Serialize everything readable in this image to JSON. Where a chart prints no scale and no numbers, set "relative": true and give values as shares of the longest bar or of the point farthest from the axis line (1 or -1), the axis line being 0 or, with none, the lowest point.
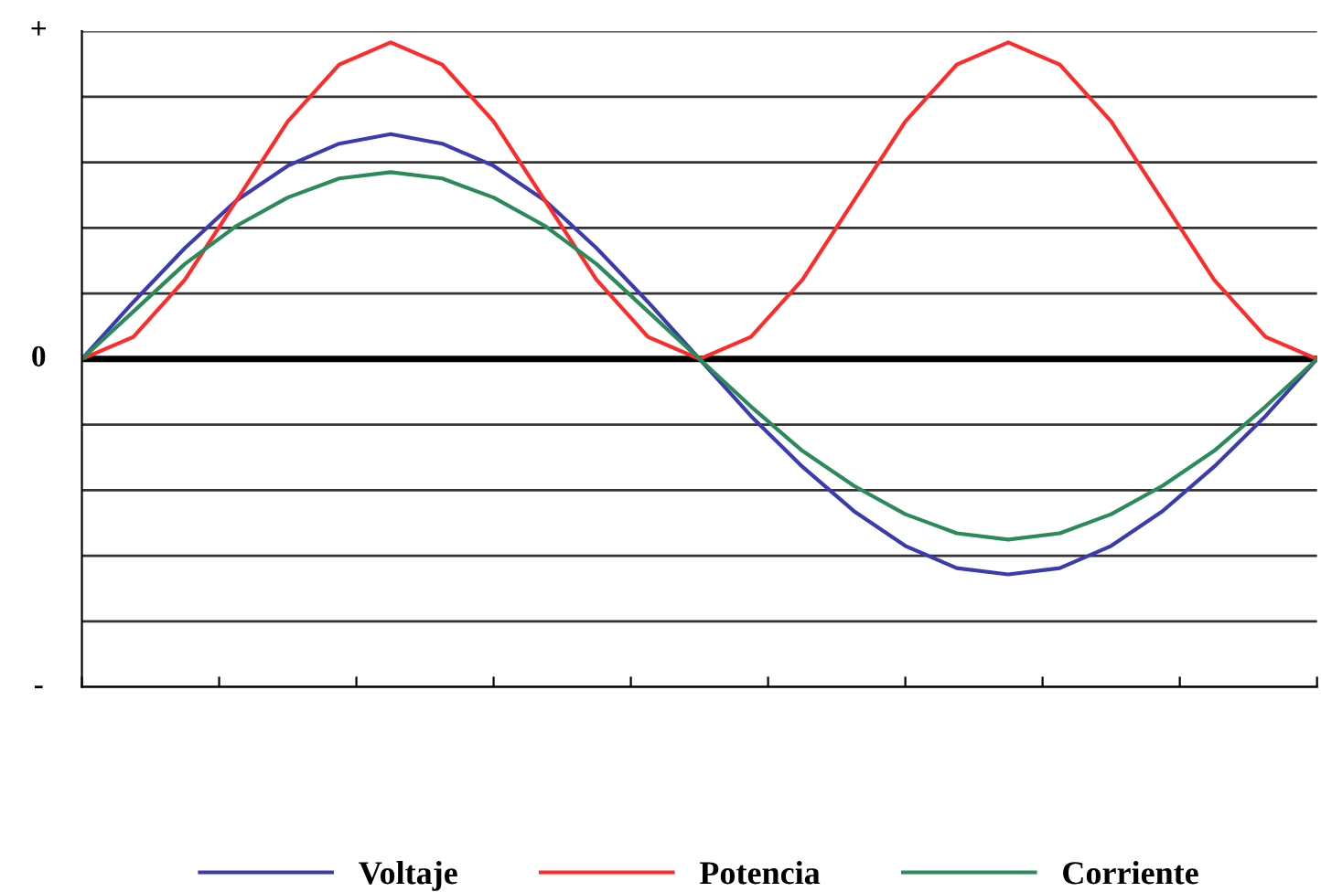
{
  "chart_data": {
    "type": "line",
    "relative": true,
    "grid": "y",
    "legend": "bottom",
    "marker": "none",
    "line_style": "solid",
    "annotations": [
      "+",
      "0",
      "-"
    ],
    "categories": [
      null,
      null,
      null,
      null,
      null,
      null,
      null,
      null,
      null,
      null,
      null,
      null,
      null,
      null,
      null,
      null,
      null,
      null,
      null,
      null,
      null,
      null,
      null,
      null,
      null
    ],
    "series": [
      {
        "name": "Voltaje",
        "color": "#3b3bb0",
        "values": [
          0,
          0.18,
          0.35,
          0.5,
          0.61,
          0.68,
          0.71,
          0.68,
          0.61,
          0.5,
          0.35,
          0.18,
          0,
          -0.18,
          -0.34,
          -0.48,
          -0.59,
          -0.66,
          -0.68,
          -0.66,
          -0.59,
          -0.48,
          -0.34,
          -0.18,
          0
        ]
      },
      {
        "name": "Potencia",
        "color": "#ff2a2a",
        "values": [
          0,
          0.07,
          0.25,
          0.5,
          0.75,
          0.93,
          1,
          0.93,
          0.75,
          0.5,
          0.25,
          0.07,
          0,
          0.07,
          0.25,
          0.5,
          0.75,
          0.93,
          1,
          0.93,
          0.75,
          0.5,
          0.25,
          0.07,
          0
        ]
      },
      {
        "name": "Corriente",
        "color": "#2a8a5a",
        "values": [
          0,
          0.15,
          0.3,
          0.42,
          0.51,
          0.57,
          0.59,
          0.57,
          0.51,
          0.42,
          0.3,
          0.15,
          0,
          -0.15,
          -0.29,
          -0.4,
          -0.49,
          -0.55,
          -0.57,
          -0.55,
          -0.49,
          -0.4,
          -0.29,
          -0.15,
          0
        ]
      }
    ]
  }
}
